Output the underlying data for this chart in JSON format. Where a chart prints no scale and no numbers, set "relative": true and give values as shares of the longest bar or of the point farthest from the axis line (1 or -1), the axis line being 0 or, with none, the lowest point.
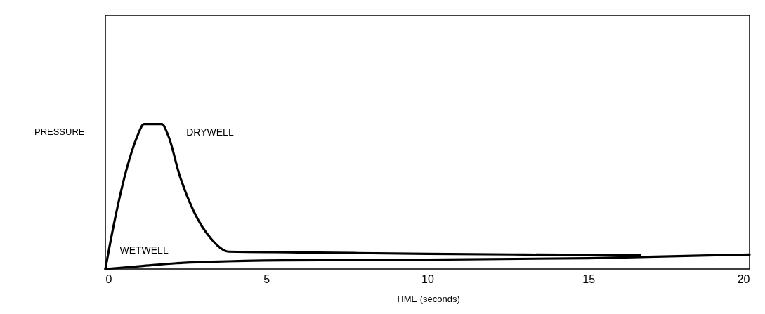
{
  "chart_data": {
    "type": "line",
    "relative": true,
    "xlabel": "TIME (seconds)",
    "ylabel": "PRESSURE",
    "xlim": [
      0,
      20
    ],
    "xticks": [
      0,
      5,
      10,
      15,
      20
    ],
    "grid": false,
    "series": [
      {
        "name": "DRYWELL",
        "color": "#000000",
        "x": [
          0,
          0.22,
          0.66,
          0.98,
          1.2,
          1.75,
          1.97,
          2.3,
          2.74,
          3.28,
          3.83,
          6,
          10,
          13,
          16.6
        ],
        "values": [
          0,
          0.26,
          0.69,
          0.91,
          1.0,
          1.0,
          0.91,
          0.65,
          0.4,
          0.21,
          0.12,
          0.115,
          0.105,
          0.1,
          0.095
        ]
      },
      {
        "name": "WETWELL",
        "color": "#000000",
        "x": [
          0,
          1.1,
          2.2,
          3.3,
          5.5,
          10,
          15,
          20
        ],
        "values": [
          0,
          0.02,
          0.04,
          0.05,
          0.06,
          0.065,
          0.075,
          0.1
        ]
      }
    ]
  }
}
